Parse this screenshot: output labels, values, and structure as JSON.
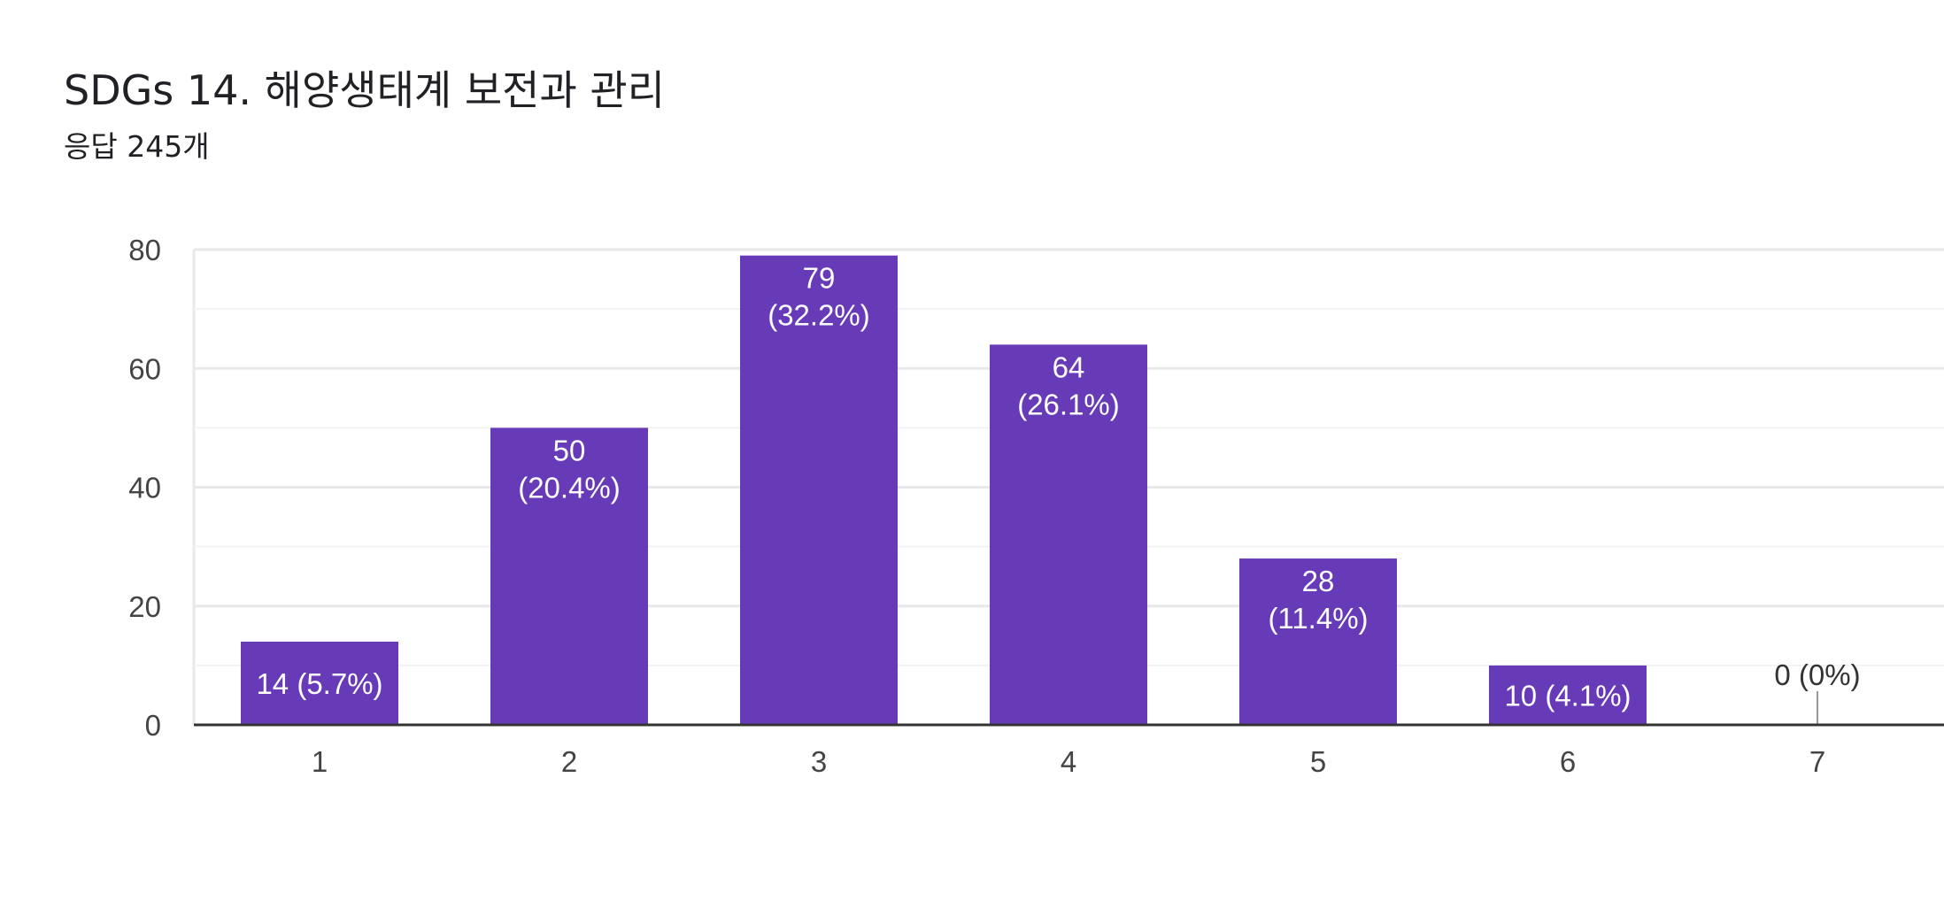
{
  "header": {
    "title": "SDGs 14. 해양생태계 보전과 관리",
    "subtitle": "응답 245개"
  },
  "colors": {
    "bar": "#673ab7",
    "label_inside": "#ffffff",
    "label_outside": "#333333",
    "grid_major": "#e8e8e8",
    "grid_minor": "#f3f3f3",
    "axis": "#333333"
  },
  "chart_data": {
    "type": "bar",
    "title": "SDGs 14. 해양생태계 보전과 관리",
    "subtitle": "응답 245개",
    "xlabel": "",
    "ylabel": "",
    "categories": [
      "1",
      "2",
      "3",
      "4",
      "5",
      "6",
      "7"
    ],
    "values": [
      14,
      50,
      79,
      64,
      28,
      10,
      0
    ],
    "data_labels": [
      [
        "14 (5.7%)"
      ],
      [
        "50",
        "(20.4%)"
      ],
      [
        "79",
        "(32.2%)"
      ],
      [
        "64",
        "(26.1%)"
      ],
      [
        "28",
        "(11.4%)"
      ],
      [
        "10 (4.1%)"
      ],
      [
        "0 (0%)"
      ]
    ],
    "ylim": [
      0,
      80
    ],
    "yticks": [
      "0",
      "20",
      "40",
      "60",
      "80"
    ],
    "grid": true,
    "legend": "none"
  }
}
